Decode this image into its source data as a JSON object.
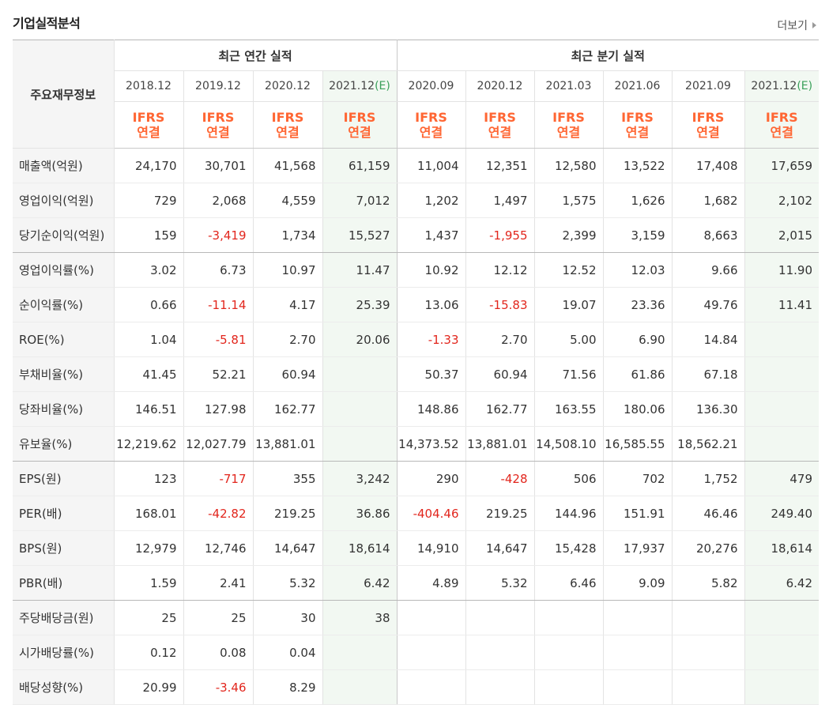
{
  "section": {
    "title": "기업실적분석",
    "more_label": "더보기"
  },
  "colors": {
    "negative": "#e2261d",
    "ifrs": "#ff6633",
    "estimate": "#3aa05a"
  },
  "table": {
    "label_header": "주요재무정보",
    "groups": [
      "최근 연간 실적",
      "최근 분기 실적"
    ],
    "periods": [
      "2018.12",
      "2019.12",
      "2020.12",
      "2021.12",
      "2020.09",
      "2020.12",
      "2021.03",
      "2021.06",
      "2021.09",
      "2021.12"
    ],
    "estimate_tag": "(E)",
    "ifrs_line1": "IFRS",
    "ifrs_line2": "연결",
    "rows": [
      {
        "label": "매출액(억원)",
        "values": [
          "24,170",
          "30,701",
          "41,568",
          "61,159",
          "11,004",
          "12,351",
          "12,580",
          "13,522",
          "17,408",
          "17,659"
        ]
      },
      {
        "label": "영업이익(억원)",
        "values": [
          "729",
          "2,068",
          "4,559",
          "7,012",
          "1,202",
          "1,497",
          "1,575",
          "1,626",
          "1,682",
          "2,102"
        ]
      },
      {
        "label": "당기순이익(억원)",
        "values": [
          "159",
          "-3,419",
          "1,734",
          "15,527",
          "1,437",
          "-1,955",
          "2,399",
          "3,159",
          "8,663",
          "2,015"
        ]
      },
      {
        "label": "영업이익률(%)",
        "values": [
          "3.02",
          "6.73",
          "10.97",
          "11.47",
          "10.92",
          "12.12",
          "12.52",
          "12.03",
          "9.66",
          "11.90"
        ]
      },
      {
        "label": "순이익률(%)",
        "values": [
          "0.66",
          "-11.14",
          "4.17",
          "25.39",
          "13.06",
          "-15.83",
          "19.07",
          "23.36",
          "49.76",
          "11.41"
        ]
      },
      {
        "label": "ROE(%)",
        "values": [
          "1.04",
          "-5.81",
          "2.70",
          "20.06",
          "-1.33",
          "2.70",
          "5.00",
          "6.90",
          "14.84",
          ""
        ]
      },
      {
        "label": "부채비율(%)",
        "values": [
          "41.45",
          "52.21",
          "60.94",
          "",
          "50.37",
          "60.94",
          "71.56",
          "61.86",
          "67.18",
          ""
        ]
      },
      {
        "label": "당좌비율(%)",
        "values": [
          "146.51",
          "127.98",
          "162.77",
          "",
          "148.86",
          "162.77",
          "163.55",
          "180.06",
          "136.30",
          ""
        ]
      },
      {
        "label": "유보율(%)",
        "values": [
          "12,219.62",
          "12,027.79",
          "13,881.01",
          "",
          "14,373.52",
          "13,881.01",
          "14,508.10",
          "16,585.55",
          "18,562.21",
          ""
        ]
      },
      {
        "label": "EPS(원)",
        "values": [
          "123",
          "-717",
          "355",
          "3,242",
          "290",
          "-428",
          "506",
          "702",
          "1,752",
          "479"
        ]
      },
      {
        "label": "PER(배)",
        "values": [
          "168.01",
          "-42.82",
          "219.25",
          "36.86",
          "-404.46",
          "219.25",
          "144.96",
          "151.91",
          "46.46",
          "249.40"
        ]
      },
      {
        "label": "BPS(원)",
        "values": [
          "12,979",
          "12,746",
          "14,647",
          "18,614",
          "14,910",
          "14,647",
          "15,428",
          "17,937",
          "20,276",
          "18,614"
        ]
      },
      {
        "label": "PBR(배)",
        "values": [
          "1.59",
          "2.41",
          "5.32",
          "6.42",
          "4.89",
          "5.32",
          "6.46",
          "9.09",
          "5.82",
          "6.42"
        ]
      },
      {
        "label": "주당배당금(원)",
        "values": [
          "25",
          "25",
          "30",
          "38",
          "",
          "",
          "",
          "",
          "",
          ""
        ]
      },
      {
        "label": "시가배당률(%)",
        "values": [
          "0.12",
          "0.08",
          "0.04",
          "",
          "",
          "",
          "",
          "",
          "",
          ""
        ]
      },
      {
        "label": "배당성향(%)",
        "values": [
          "20.99",
          "-3.46",
          "8.29",
          "",
          "",
          "",
          "",
          "",
          "",
          ""
        ]
      }
    ]
  }
}
